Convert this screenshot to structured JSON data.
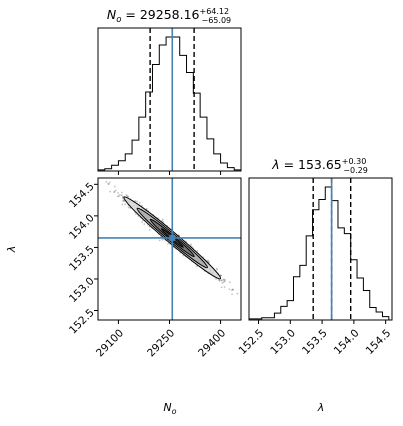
{
  "chart_data": {
    "type": "corner",
    "parameters": [
      {
        "id": "No",
        "label_main": "N",
        "label_sub": "o",
        "title_value": "29258.16",
        "title_plus": "+64.12",
        "title_minus": "−65.09",
        "truth": 29258.16,
        "quantiles": [
          29193.07,
          29258.16,
          29322.28
        ],
        "range": [
          29040,
          29460
        ],
        "ticks": [
          29100,
          29250,
          29400
        ],
        "tick_labels": [
          "29100",
          "29250",
          "29400"
        ],
        "hist_bins": [
          29040,
          29060,
          29080,
          29100,
          29120,
          29140,
          29160,
          29180,
          29200,
          29220,
          29240,
          29260,
          29280,
          29300,
          29320,
          29340,
          29360,
          29380,
          29400,
          29420,
          29440,
          29460
        ],
        "hist_counts": [
          1,
          2,
          5,
          9,
          15,
          27,
          47,
          69,
          93,
          110,
          117,
          117,
          101,
          86,
          68,
          47,
          28,
          15,
          7,
          3,
          1
        ]
      },
      {
        "id": "lambda",
        "label_main": "λ",
        "title_value": "153.65",
        "title_plus": "+0.30",
        "title_minus": "−0.29",
        "truth": 153.65,
        "quantiles": [
          153.36,
          153.65,
          153.95
        ],
        "range": [
          152.35,
          154.6
        ],
        "ticks": [
          152.5,
          153.0,
          153.5,
          154.0,
          154.5
        ],
        "tick_labels": [
          "152.5",
          "153.0",
          "153.5",
          "154.0",
          "154.5"
        ],
        "hist_bins": [
          152.35,
          152.45,
          152.55,
          152.65,
          152.75,
          152.85,
          152.95,
          153.05,
          153.15,
          153.25,
          153.35,
          153.45,
          153.55,
          153.65,
          153.75,
          153.85,
          153.95,
          154.05,
          154.15,
          154.25,
          154.35,
          154.45,
          154.55
        ],
        "hist_counts": [
          1,
          1,
          2,
          2,
          6,
          12,
          17,
          38,
          48,
          74,
          97,
          106,
          117,
          105,
          81,
          76,
          53,
          37,
          26,
          11,
          7,
          3
        ]
      }
    ],
    "joint": {
      "center": [
        29258.16,
        153.65
      ],
      "sigma_x": 64.5,
      "sigma_y": 0.295,
      "correlation": -0.985
    },
    "colors": {
      "truth": "#4682b4",
      "hist": "#000000",
      "quantile": "#000000",
      "points": "#555555"
    }
  }
}
